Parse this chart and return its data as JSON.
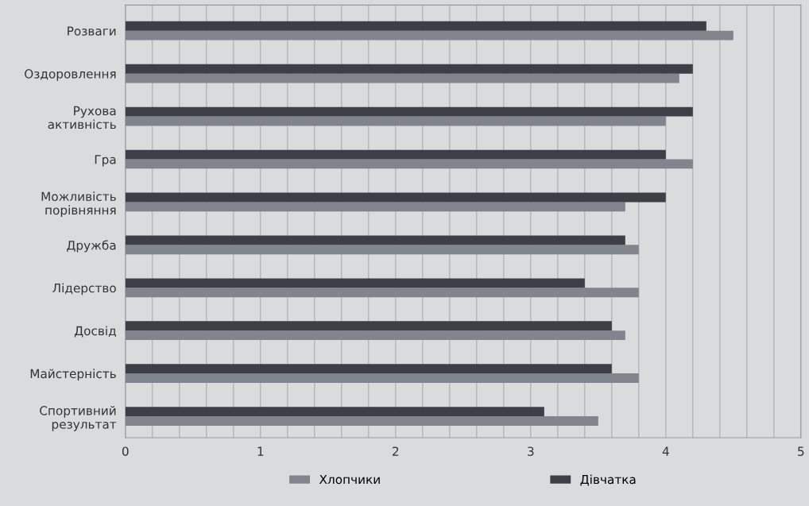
{
  "chart_data": {
    "type": "bar",
    "orientation": "horizontal",
    "categories": [
      "Розваги",
      "Оздоровлення",
      "Рухова\nактивність",
      "Гра",
      "Можливість\nпорівняння",
      "Дружба",
      "Лідерство",
      "Досвід",
      "Майстерність",
      "Спортивний\nрезультат"
    ],
    "series": [
      {
        "name": "Хлопчики",
        "color": "#80848c",
        "values": [
          4.5,
          4.1,
          4.0,
          4.2,
          3.7,
          3.8,
          3.8,
          3.7,
          3.8,
          3.5
        ]
      },
      {
        "name": "Дівчатка",
        "color": "#3c3f46",
        "values": [
          4.3,
          4.2,
          4.2,
          4.0,
          4.0,
          3.7,
          3.4,
          3.6,
          3.6,
          3.1
        ]
      }
    ],
    "xlim": [
      0,
      5
    ],
    "xticks": [
      0,
      {
        "value": 0.2,
        "label": null
      },
      {
        "value": 0.4,
        "label": null
      },
      {
        "value": 0.6,
        "label": null
      },
      {
        "value": 0.8,
        "label": null
      },
      1,
      {
        "value": 1.2,
        "label": null
      },
      {
        "value": 1.4,
        "label": null
      },
      {
        "value": 1.6,
        "label": null
      },
      {
        "value": 1.8,
        "label": null
      },
      2,
      {
        "value": 2.2,
        "label": null
      },
      {
        "value": 2.4,
        "label": null
      },
      {
        "value": 2.6,
        "label": null
      },
      {
        "value": 2.8,
        "label": null
      },
      3,
      {
        "value": 3.2,
        "label": null
      },
      {
        "value": 3.4,
        "label": null
      },
      {
        "value": 3.6,
        "label": null
      },
      {
        "value": 3.8,
        "label": null
      },
      4,
      {
        "value": 4.2,
        "label": null
      },
      {
        "value": 4.4,
        "label": null
      },
      {
        "value": 4.6,
        "label": null
      },
      {
        "value": 4.8,
        "label": null
      },
      5
    ],
    "grid": "x",
    "legend": "bottom"
  }
}
